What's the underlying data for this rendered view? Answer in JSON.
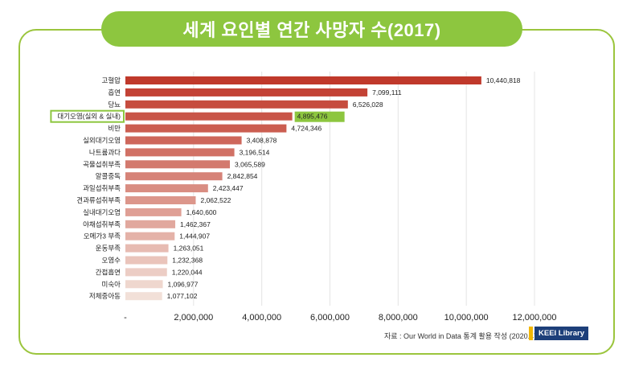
{
  "title": "세계 요인별 연간 사망자 수(2017)",
  "source": "자료 : Our World in Data 통계 활용 작성 (2020.4)",
  "logo": "KEEI Library",
  "colors": {
    "accent": "#8dc63f",
    "frame": "#9bc53d",
    "highlight_bar": "#c0392b"
  },
  "chart_data": {
    "type": "bar",
    "orientation": "horizontal",
    "categories": [
      "고혈압",
      "흡연",
      "당뇨",
      "대기오염(실외 & 실내)",
      "비만",
      "실외대기오염",
      "나트륨과다",
      "곡물섭취부족",
      "알콜중독",
      "과일섭취부족",
      "견과류섭취부족",
      "실내대기오염",
      "야채섭취부족",
      "오메가3 부족",
      "운동부족",
      "오염수",
      "간접흡연",
      "미숙아",
      "저체중아동"
    ],
    "values": [
      10440818,
      7099111,
      6526028,
      4895476,
      4724346,
      3408878,
      3196514,
      3065589,
      2842854,
      2423447,
      2062522,
      1640600,
      1462367,
      1444907,
      1263051,
      1232368,
      1220044,
      1096977,
      1077102
    ],
    "value_labels": [
      "10,440,818",
      "7,099,111",
      "6,526,028",
      "4,895,476",
      "4,724,346",
      "3,408,878",
      "3,196,514",
      "3,065,589",
      "2,842,854",
      "2,423,447",
      "2,062,522",
      "1,640,600",
      "1,462,367",
      "1,444,907",
      "1,263,051",
      "1,232,368",
      "1,220,044",
      "1,096,977",
      "1,077,102"
    ],
    "highlighted": "대기오염(실외 & 실내)",
    "x_ticks": [
      0,
      2000000,
      4000000,
      6000000,
      8000000,
      10000000,
      12000000
    ],
    "x_tick_labels": [
      "-",
      "2,000,000",
      "4,000,000",
      "6,000,000",
      "8,000,000",
      "10,000,000",
      "12,000,000"
    ],
    "xlim": [
      0,
      12000000
    ],
    "xlabel": "",
    "ylabel": "",
    "grid": true,
    "legend": "none"
  }
}
